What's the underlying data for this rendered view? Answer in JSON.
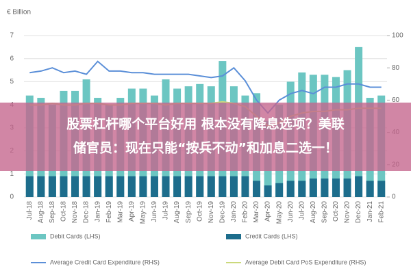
{
  "chart_data": {
    "type": "bar",
    "y_label": "€ Billion",
    "categories": [
      "Jul-18",
      "Aug-18",
      "Sep-18",
      "Oct-18",
      "Nov-18",
      "Dec-18",
      "Jan-19",
      "Feb-19",
      "Mar-19",
      "Apr-19",
      "May-19",
      "Jun-19",
      "Jul-19",
      "Aug-19",
      "Sep-19",
      "Oct-19",
      "Nov-19",
      "Dec-19",
      "Jan-20",
      "Feb-20",
      "Mar-20",
      "Apr-20",
      "May-20",
      "Jun-20",
      "Jul-20",
      "Aug-20",
      "Sep-20",
      "Oct-20",
      "Nov-20",
      "Dec-20",
      "Jan-21",
      "Feb-21"
    ],
    "series": [
      {
        "name": "Debit Cards (LHS)",
        "type": "bar",
        "color": "#6cc6c2",
        "values": [
          4.4,
          4.3,
          4.0,
          4.6,
          4.6,
          5.1,
          4.3,
          4.0,
          4.3,
          4.7,
          4.7,
          4.4,
          5.1,
          4.7,
          4.8,
          4.9,
          4.8,
          5.9,
          4.8,
          4.4,
          4.5,
          3.3,
          4.0,
          5.0,
          5.4,
          5.3,
          5.3,
          5.2,
          5.5,
          6.5,
          4.3,
          4.4
        ]
      },
      {
        "name": "Credit Cards (LHS)",
        "type": "bar",
        "color": "#1d6d8c",
        "values": [
          0.9,
          0.9,
          0.9,
          0.9,
          0.9,
          0.9,
          0.9,
          0.9,
          0.9,
          0.9,
          0.9,
          0.9,
          0.9,
          0.9,
          0.9,
          0.9,
          0.9,
          0.9,
          0.9,
          0.9,
          0.7,
          0.5,
          0.6,
          0.7,
          0.7,
          0.8,
          0.8,
          0.8,
          0.8,
          0.9,
          0.7,
          0.7
        ]
      },
      {
        "name": "Average Credit Card Expenditure (RHS)",
        "type": "line",
        "axis": "y2",
        "color": "#5b8fd8",
        "values": [
          77,
          78,
          80,
          77,
          78,
          76,
          84,
          78,
          78,
          77,
          77,
          76,
          76,
          76,
          76,
          75,
          74,
          75,
          80,
          72,
          60,
          52,
          60,
          64,
          66,
          64,
          68,
          68,
          70,
          70,
          68,
          68
        ]
      },
      {
        "name": "Average Debit Card PoS Expenditure (RHS)",
        "type": "line",
        "axis": "y2",
        "color": "#cbd97c",
        "values": [
          57,
          57,
          58,
          57,
          57,
          58,
          58,
          57,
          57,
          58,
          58,
          58,
          57,
          58,
          58,
          58,
          58,
          59,
          58,
          56,
          50,
          44,
          46,
          50,
          52,
          53,
          53,
          54,
          54,
          55,
          55,
          55
        ]
      }
    ],
    "ylim": [
      0,
      7
    ],
    "yticks": [
      0,
      1,
      2,
      3,
      4,
      5,
      6,
      7
    ],
    "y2lim": [
      0,
      100
    ],
    "y2ticks": [
      0,
      20,
      40,
      60,
      80,
      100
    ],
    "grid": true
  },
  "overlay": {
    "lines": [
      "股票杠杆哪个平台好用 根本没有降息选项？美联",
      "储官员：现在只能“按兵不动”和加息二选一！"
    ]
  }
}
